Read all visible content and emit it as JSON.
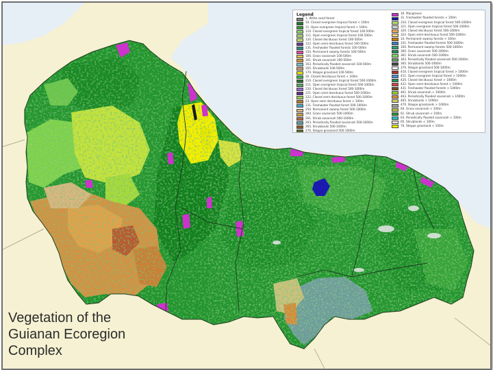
{
  "title_lines": [
    "Vegetation of the",
    "Guianan Ecoregion",
    "Complex"
  ],
  "legend": {
    "title": "Legend",
    "col1": [
      {
        "label": "1. White sand forest",
        "color": "#7f7f7f"
      },
      {
        "label": "10. Closed evergreen tropical forest < 100m",
        "color": "#1f7a28"
      },
      {
        "label": "11. Open evergreen tropical forest < 100m",
        "color": "#3c9d3a"
      },
      {
        "label": "110. Closed evergreen tropical forest 100-500m",
        "color": "#8dd76a"
      },
      {
        "label": "111. Open evergreen tropical forest 100-500m",
        "color": "#a6d96a"
      },
      {
        "label": "120. Closed deciduous forest 100-500m",
        "color": "#c5e06a"
      },
      {
        "label": "122. Open semi-deciduous forest 100-500m",
        "color": "#6b3a8e"
      },
      {
        "label": "131. Freshwater flooded forests 100-500m",
        "color": "#2a8c8c"
      },
      {
        "label": "150. Permanent swamp forests 100-500m",
        "color": "#e04aa8"
      },
      {
        "label": "160. Grass savannah 100-500m",
        "color": "#e8c04a"
      },
      {
        "label": "161. Shrub savannah 100-500m",
        "color": "#d79a3a"
      },
      {
        "label": "163. Periodically flooded savannah 100-500m",
        "color": "#7fbfbf"
      },
      {
        "label": "165. Shrublands 100-500m",
        "color": "#c89a6a"
      },
      {
        "label": "170. Steppe grassland 100-500m",
        "color": "#e6e600"
      },
      {
        "label": "20. Closed deciduous forest < 100m",
        "color": "#3cb44b"
      },
      {
        "label": "210. Closed evergreen tropical forest 500-1000m",
        "color": "#2d6e2d"
      },
      {
        "label": "211. Open evergreen tropical forest 500-1000m",
        "color": "#57a85a"
      },
      {
        "label": "220. Closed deciduous forest 500-1000m",
        "color": "#9a6bd1"
      },
      {
        "label": "221. Open semi-deciduous forest 500-1000m",
        "color": "#5b2e86"
      },
      {
        "label": "222. Closed semi-deciduous forest 500-1000m",
        "color": "#a3d14a"
      },
      {
        "label": "23. Open semi deciduous forest < 100m",
        "color": "#b97a2a"
      },
      {
        "label": "231. Freshwater flooded forest 500-1000m",
        "color": "#44aacc"
      },
      {
        "label": "250. Permanent swamp forest 500-1000m",
        "color": "#d2b48c"
      },
      {
        "label": "260. Grass savannah 500-1000m",
        "color": "#cfa24a"
      },
      {
        "label": "261. Shrub savannah 500-1000m",
        "color": "#b0694a"
      },
      {
        "label": "263. Periodically flooded savannah 500-1000m",
        "color": "#5f9ea0"
      },
      {
        "label": "265. Shrublands 500-1000m",
        "color": "#8b5a2b"
      },
      {
        "label": "270. Steppe grassland 500-1000m",
        "color": "#556b2f"
      }
    ],
    "col2": [
      {
        "label": "30. Mangroves",
        "color": "#cc33cc"
      },
      {
        "label": "31. Freshwater flooded forests < 100m",
        "color": "#1a1aa8"
      },
      {
        "label": "310. Closed evergreen tropical forest 500-1000m",
        "color": "#b0e070"
      },
      {
        "label": "311. Open evergreen tropical forest 500-1000m",
        "color": "#d6d6d6"
      },
      {
        "label": "320. Closed deciduous forest 500-1000m",
        "color": "#f2a65a"
      },
      {
        "label": "322. Open semi-deciduous forest 500-1000m",
        "color": "#f5d68a"
      },
      {
        "label": "33. Permanent swamp forests < 100m",
        "color": "#cc7a00"
      },
      {
        "label": "331. Freshwater flooded forests 500-1000m",
        "color": "#3a7fc1"
      },
      {
        "label": "350. Permanent swamp forests 500-1000m",
        "color": "#2e9e6e"
      },
      {
        "label": "360. Grass savannah 500-1000m",
        "color": "#1e8f50"
      },
      {
        "label": "361. Shrub savannah 500-1000m",
        "color": "#7ed957"
      },
      {
        "label": "363. Periodically flooded savannah 500-1000m",
        "color": "#5aa05a"
      },
      {
        "label": "365. Shrublands 500-1000m",
        "color": "#444444"
      },
      {
        "label": "370. Steppe grassland 500-1000m",
        "color": "#f7f7f7"
      },
      {
        "label": "410. Closed evergreen tropical forest > 1000m",
        "color": "#b03030"
      },
      {
        "label": "411. Open evergreen tropical forest > 1000m",
        "color": "#4a90d9"
      },
      {
        "label": "420. Closed deciduous forest > 1000m",
        "color": "#2e8b57"
      },
      {
        "label": "422. Open semi-deciduous forest > 1000m",
        "color": "#d64545"
      },
      {
        "label": "431. Freshwater flooded forests > 1000m",
        "color": "#7a4a2a"
      },
      {
        "label": "461. Shrub savannah > 1000m",
        "color": "#9acd32"
      },
      {
        "label": "463. Periodically flooded savannah > 1000m",
        "color": "#d98c3a"
      },
      {
        "label": "465. Shrublands > 1000m",
        "color": "#d0d070"
      },
      {
        "label": "470. Steppe grasslands > 1000m",
        "color": "#a0a0a0"
      },
      {
        "label": "60. Grass savannah < 100m",
        "color": "#bdbd3a"
      },
      {
        "label": "61. Shrub savannah < 100m",
        "color": "#2f8f2f"
      },
      {
        "label": "63. Periodically flooded savannah < 100m",
        "color": "#26c0c0"
      },
      {
        "label": "65. Shrublands < 100m",
        "color": "#e0e0e0"
      },
      {
        "label": "70. Steppe grassland < 100m",
        "color": "#ffff00"
      }
    ]
  },
  "colors": {
    "ocean": "#e6eef6",
    "land_outside": "#f5f1d2",
    "forest_base": "#23952e",
    "forest_dark": "#14801f",
    "forest_light": "#46b33f",
    "savanna_orange": "#d08a3a",
    "savanna_tan": "#d8b27a",
    "yellow_green": "#c6e33a",
    "bright_yellow": "#f3f000",
    "lime": "#9cd94a",
    "magenta": "#cc33cc",
    "blue_water": "#1a1ab0",
    "teal_grey": "#6f9e9e",
    "border_line": "#1f3a1f"
  }
}
